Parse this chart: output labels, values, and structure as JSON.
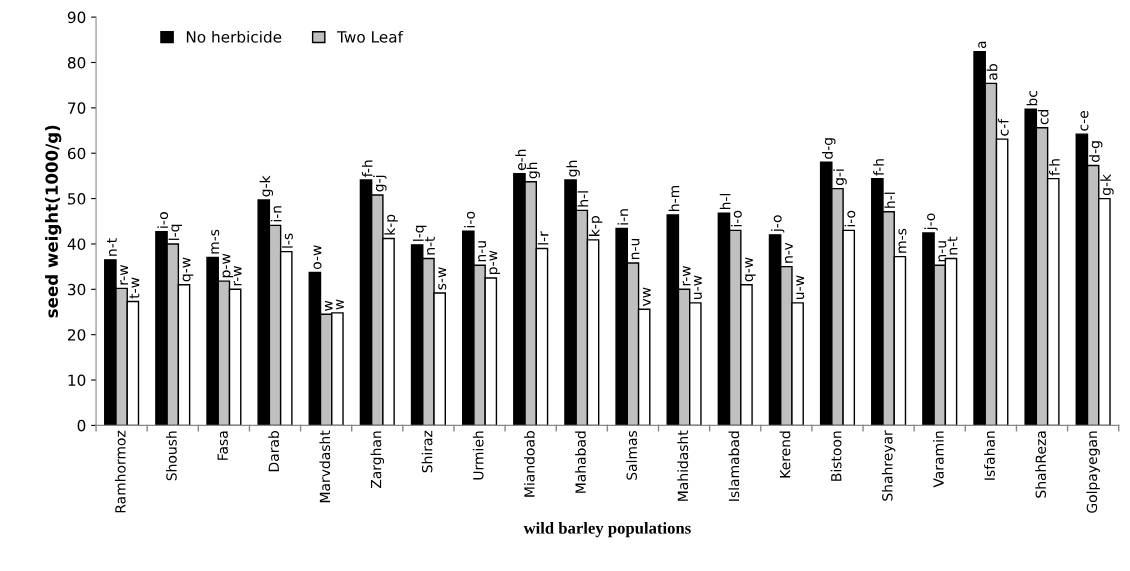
{
  "chart_data": {
    "type": "bar",
    "xlabel": "wild barley populations",
    "ylabel": "seed weight(1000/g)",
    "categories": [
      "Ramhormoz",
      "Shoush",
      "Fasa",
      "Darab",
      "Marvdasht",
      "Zarghan",
      "Shiraz",
      "Urmieh",
      "Miandoab",
      "Mahabad",
      "Salmas",
      "Mahidasht",
      "Islamabad",
      "Kerend",
      "Bistoon",
      "Shahreyar",
      "Varamin",
      "Isfahan",
      "ShahReza",
      "Golpayegan"
    ],
    "series": [
      {
        "name": "No herbicide",
        "color": "#000000",
        "values": [
          36.5,
          42.7,
          37,
          49.7,
          33.7,
          54.1,
          39.8,
          42.8,
          55.5,
          54.1,
          43.4,
          46.4,
          46.8,
          42,
          58,
          54.4,
          42.4,
          82.4,
          69.7,
          64.2
        ],
        "value_labels": [
          "n-t",
          "i-o",
          "m-s",
          "g-k",
          "o-w",
          "f-h",
          "l-q",
          "i-o",
          "e-h",
          "gh",
          "i-n",
          "h-m",
          "h-l",
          "j-o",
          "d-g",
          "f-h",
          "j-o",
          "a",
          "bc",
          "c-e"
        ]
      },
      {
        "name": "Two Leaf",
        "color": "#c0c0c0",
        "values": [
          30.2,
          40,
          31.8,
          44.1,
          24.5,
          50.8,
          36.8,
          35.3,
          53.7,
          47.4,
          35.8,
          30,
          43,
          35,
          52.2,
          47.1,
          35.3,
          75.4,
          65.6,
          57.3
        ],
        "value_labels": [
          "r-w",
          "l-q",
          "p-w",
          "i-n",
          "w",
          "g-j",
          "n-t",
          "n-u",
          "gh",
          "h-l",
          "n-u",
          "r-w",
          "i-o",
          "n-v",
          "g-i",
          "h-l",
          "n-u",
          "ab",
          "cd",
          "d-g"
        ]
      },
      {
        "color": "#ffffff",
        "values": [
          27.3,
          31,
          30,
          38.3,
          24.8,
          41.2,
          29.2,
          32.5,
          39,
          40.9,
          25.6,
          27,
          31,
          27,
          43,
          37.2,
          36.8,
          63.1,
          54.4,
          50
        ],
        "value_labels": [
          "t-w",
          "q-w",
          "r-w",
          "l-s",
          "w",
          "k-p",
          "s-w",
          "p-w",
          "l-r",
          "k-p",
          "vw",
          "u-w",
          "q-w",
          "u-w",
          "i-o",
          "m-s",
          "n-t",
          "c-f",
          "f-h",
          "g-k"
        ]
      }
    ],
    "ylim": [
      0,
      90
    ],
    "yticks": [
      0,
      10,
      20,
      30,
      40,
      50,
      60,
      70,
      80,
      90
    ],
    "grid": false,
    "legend": "top left"
  }
}
